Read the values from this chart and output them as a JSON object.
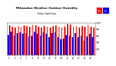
{
  "title": "Milwaukee Weather Outdoor Humidity",
  "subtitle": "Daily High/Low",
  "high_values": [
    92,
    88,
    85,
    90,
    88,
    92,
    90,
    87,
    93,
    91,
    88,
    85,
    90,
    88,
    84,
    90,
    92,
    88,
    85,
    87,
    95,
    93,
    88,
    90,
    85,
    90,
    88,
    93,
    88,
    85
  ],
  "low_values": [
    62,
    72,
    60,
    68,
    70,
    65,
    68,
    58,
    60,
    72,
    65,
    60,
    70,
    65,
    55,
    68,
    70,
    55,
    48,
    50,
    62,
    60,
    55,
    68,
    55,
    60,
    45,
    58,
    65,
    55
  ],
  "bar_width": 0.4,
  "high_color": "#ff0000",
  "low_color": "#0000ff",
  "bg_color": "#ffffff",
  "plot_bg": "#ffffff",
  "ylim": [
    0,
    100
  ],
  "yticks": [
    20,
    40,
    60,
    80,
    100
  ],
  "grid_color": "#cccccc",
  "legend_high": "High",
  "legend_low": "Low",
  "dashed_indices": [
    19,
    20,
    21
  ],
  "border_color": "#888888"
}
